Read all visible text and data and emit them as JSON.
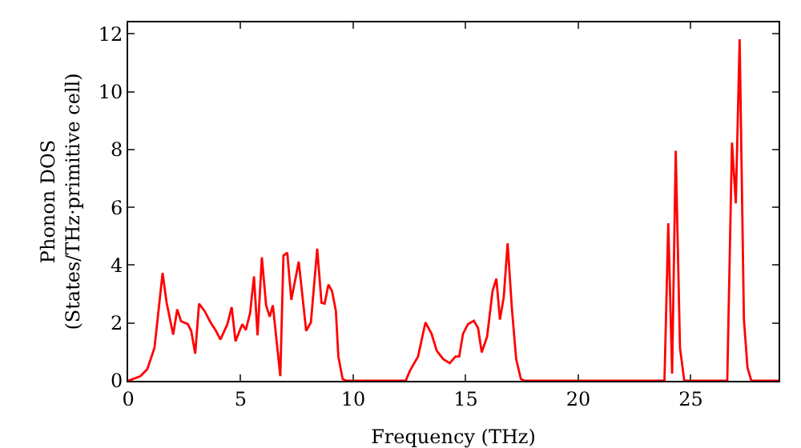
{
  "chart_data": {
    "type": "line",
    "xlabel": "Frequency (THz)",
    "ylabel": "Phonon DOS\n(States/THz·primitive cell)",
    "xlim": [
      0,
      28.9
    ],
    "ylim": [
      0,
      12.4
    ],
    "xticks": [
      0,
      5,
      10,
      15,
      20,
      25
    ],
    "yticks": [
      0,
      2,
      4,
      6,
      8,
      10,
      12
    ],
    "grid": false,
    "marker": "none",
    "line_style": "solid",
    "series": [
      {
        "color": "#ff0000",
        "x": [
          0,
          0.54,
          0.85,
          1.17,
          1.53,
          1.71,
          2.0,
          2.18,
          2.35,
          2.65,
          2.8,
          2.98,
          3.15,
          3.4,
          3.66,
          3.9,
          4.1,
          4.41,
          4.6,
          4.77,
          5.07,
          5.23,
          5.42,
          5.59,
          5.75,
          5.94,
          6.13,
          6.29,
          6.43,
          6.76,
          6.9,
          7.07,
          7.25,
          7.58,
          7.91,
          8.12,
          8.4,
          8.59,
          8.73,
          8.9,
          9.06,
          9.23,
          9.34,
          9.53,
          9.7,
          12.33,
          12.52,
          12.88,
          13.21,
          13.48,
          13.71,
          14.0,
          14.29,
          14.55,
          14.71,
          14.88,
          15.1,
          15.36,
          15.55,
          15.71,
          15.95,
          16.19,
          16.36,
          16.52,
          16.69,
          16.86,
          17.05,
          17.24,
          17.45,
          17.62,
          23.83,
          24.0,
          24.17,
          24.33,
          24.52,
          24.71,
          26.62,
          26.83,
          27.0,
          27.17,
          27.36,
          27.52,
          27.69,
          28.9
        ],
        "values": [
          0,
          0.16,
          0.4,
          1.14,
          3.73,
          2.7,
          1.6,
          2.47,
          2.06,
          1.96,
          1.73,
          0.94,
          2.67,
          2.41,
          2.02,
          1.73,
          1.43,
          1.96,
          2.55,
          1.37,
          1.96,
          1.76,
          2.35,
          3.61,
          1.57,
          4.27,
          2.61,
          2.22,
          2.61,
          0.16,
          4.33,
          4.43,
          2.8,
          4.12,
          1.73,
          2.02,
          4.57,
          2.7,
          2.67,
          3.33,
          3.1,
          2.41,
          0.84,
          0.06,
          0,
          0,
          0.35,
          0.84,
          2.02,
          1.63,
          1.04,
          0.75,
          0.61,
          0.84,
          0.84,
          1.63,
          1.96,
          2.08,
          1.82,
          0.98,
          1.53,
          3.1,
          3.53,
          2.12,
          2.9,
          4.76,
          2.51,
          0.75,
          0.06,
          0,
          0,
          5.45,
          0.25,
          7.96,
          1.14,
          0,
          0,
          8.24,
          6.14,
          11.82,
          2.12,
          0.45,
          0,
          0
        ]
      }
    ]
  }
}
